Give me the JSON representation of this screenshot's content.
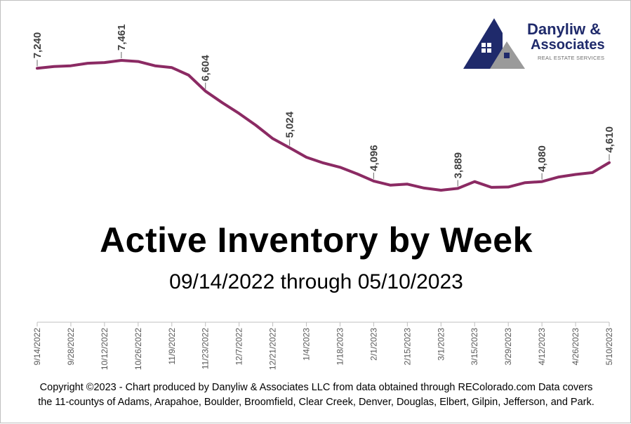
{
  "chart_data": {
    "type": "line",
    "title": "Active Inventory by Week",
    "subtitle": "09/14/2022 through 05/10/2023",
    "color": "#8b2a63",
    "x": [
      "9/14/2022",
      "9/21/2022",
      "9/28/2022",
      "10/5/2022",
      "10/12/2022",
      "10/19/2022",
      "10/26/2022",
      "11/2/2022",
      "11/9/2022",
      "11/16/2022",
      "11/23/2022",
      "11/30/2022",
      "12/7/2022",
      "12/14/2022",
      "12/21/2022",
      "12/28/2022",
      "1/4/2023",
      "1/11/2023",
      "1/18/2023",
      "1/25/2023",
      "2/1/2023",
      "2/8/2023",
      "2/15/2023",
      "2/22/2023",
      "3/1/2023",
      "3/8/2023",
      "3/15/2023",
      "3/22/2023",
      "3/29/2023",
      "4/5/2023",
      "4/12/2023",
      "4/19/2023",
      "4/26/2023",
      "5/3/2023",
      "5/10/2023"
    ],
    "values": [
      7240,
      7290,
      7310,
      7380,
      7400,
      7461,
      7430,
      7310,
      7260,
      7050,
      6604,
      6280,
      5980,
      5650,
      5280,
      5024,
      4760,
      4600,
      4480,
      4300,
      4096,
      3980,
      4010,
      3900,
      3839,
      3889,
      4080,
      3920,
      3930,
      4050,
      4080,
      4210,
      4280,
      4330,
      4610
    ],
    "tick_labels": [
      "9/14/2022",
      "9/28/2022",
      "10/12/2022",
      "10/26/2022",
      "11/9/2022",
      "11/23/2022",
      "12/7/2022",
      "12/21/2022",
      "1/4/2023",
      "1/18/2023",
      "2/1/2023",
      "2/15/2023",
      "3/1/2023",
      "3/15/2023",
      "3/29/2023",
      "4/12/2023",
      "4/26/2023",
      "5/10/2023"
    ],
    "data_labels": [
      {
        "label": "7,240",
        "value": 7240,
        "index": 0
      },
      {
        "label": "7,461",
        "value": 7461,
        "index": 5
      },
      {
        "label": "6,604",
        "value": 6604,
        "index": 10
      },
      {
        "label": "5,024",
        "value": 5024,
        "index": 15
      },
      {
        "label": "4,096",
        "value": 4096,
        "index": 20
      },
      {
        "label": "3,889",
        "value": 3889,
        "index": 25
      },
      {
        "label": "4,080",
        "value": 4080,
        "index": 30
      },
      {
        "label": "4,610",
        "value": 4610,
        "index": 34
      }
    ],
    "ylim": [
      3500,
      8000
    ],
    "grid": false,
    "legend": "none"
  },
  "logo": {
    "name_line1": "Danyliw &",
    "name_line2": "Associates",
    "tagline": "REAL ESTATE SERVICES",
    "colors": {
      "navy": "#1f2a6b",
      "gray": "#9a9a9a"
    }
  },
  "footer": {
    "line1": "Copyright ©2023 - Chart produced by Danyliw & Associates LLC from data obtained through REColorado.com Data covers",
    "line2": "the 11-countys of Adams, Arapahoe, Boulder, Broomfield, Clear Creek, Denver, Douglas, Elbert, Gilpin, Jefferson, and Park."
  }
}
